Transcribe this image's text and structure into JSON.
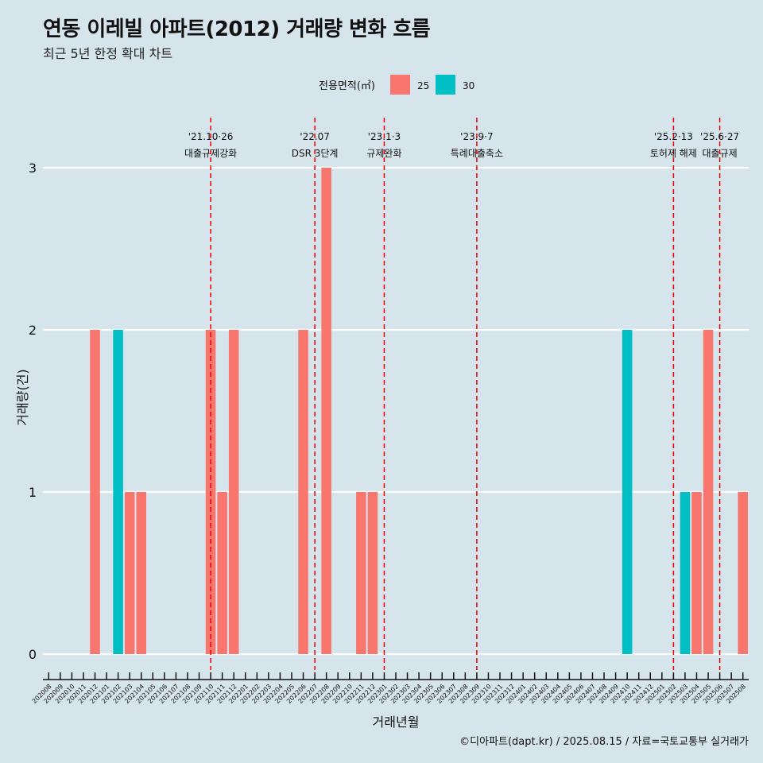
{
  "header": {
    "title": "연동 이레빌 아파트(2012) 거래량 변화 흐름",
    "subtitle": "최근 5년 한정 확대 차트"
  },
  "footer": {
    "caption": "©디아파트(dapt.kr) / 2025.08.15 / 자료=국토교통부 실거래가"
  },
  "chart_data": {
    "type": "bar",
    "title": "연동 이레빌 아파트(2012) 거래량 변화 흐름",
    "subtitle": "최근 5년 한정 확대 차트",
    "xlabel": "거래년월",
    "ylabel": "거래량(건)",
    "ylim": [
      0,
      3
    ],
    "yticks": [
      0,
      1,
      2,
      3
    ],
    "grid": true,
    "legend": {
      "title": "전용면적(㎡)",
      "position": "top",
      "entries": [
        {
          "name": "25",
          "color": "#f8766d"
        },
        {
          "name": "30",
          "color": "#00bfc4"
        }
      ]
    },
    "categories": [
      "202008",
      "202009",
      "202010",
      "202011",
      "202012",
      "202101",
      "202102",
      "202103",
      "202104",
      "202105",
      "202106",
      "202107",
      "202108",
      "202109",
      "202110",
      "202111",
      "202112",
      "202201",
      "202202",
      "202203",
      "202204",
      "202205",
      "202206",
      "202207",
      "202208",
      "202209",
      "202210",
      "202211",
      "202212",
      "202301",
      "202302",
      "202303",
      "202304",
      "202305",
      "202306",
      "202307",
      "202308",
      "202309",
      "202310",
      "202311",
      "202312",
      "202401",
      "202402",
      "202403",
      "202404",
      "202405",
      "202406",
      "202407",
      "202408",
      "202409",
      "202410",
      "202411",
      "202412",
      "202501",
      "202502",
      "202503",
      "202504",
      "202505",
      "202506",
      "202507",
      "202508"
    ],
    "series": [
      {
        "name": "25",
        "color": "#f8766d",
        "bars": [
          {
            "x": "202012",
            "value": 2
          },
          {
            "x": "202103",
            "value": 1
          },
          {
            "x": "202104",
            "value": 1
          },
          {
            "x": "202110",
            "value": 2
          },
          {
            "x": "202111",
            "value": 1
          },
          {
            "x": "202112",
            "value": 2
          },
          {
            "x": "202206",
            "value": 2
          },
          {
            "x": "202208",
            "value": 3
          },
          {
            "x": "202211",
            "value": 1
          },
          {
            "x": "202212",
            "value": 1
          },
          {
            "x": "202504",
            "value": 1
          },
          {
            "x": "202505",
            "value": 2
          },
          {
            "x": "202508",
            "value": 1
          }
        ]
      },
      {
        "name": "30",
        "color": "#00bfc4",
        "bars": [
          {
            "x": "202102",
            "value": 2
          },
          {
            "x": "202410",
            "value": 2
          },
          {
            "x": "202503",
            "value": 1
          }
        ]
      }
    ],
    "annotations": [
      {
        "x": "202110",
        "date": "'21.10·26",
        "label": "대출규제강화"
      },
      {
        "x": "202207",
        "date": "'22.07",
        "label": "DSR 3단계"
      },
      {
        "x": "202301",
        "date": "'23.1·3",
        "label": "규제완화"
      },
      {
        "x": "202309",
        "date": "'23.9·7",
        "label": "특례대출축소"
      },
      {
        "x": "202502",
        "date": "'25.2·13",
        "label": "토허제 해제"
      },
      {
        "x": "202506",
        "date": "'25.6·27",
        "label": "대출규제"
      }
    ]
  }
}
